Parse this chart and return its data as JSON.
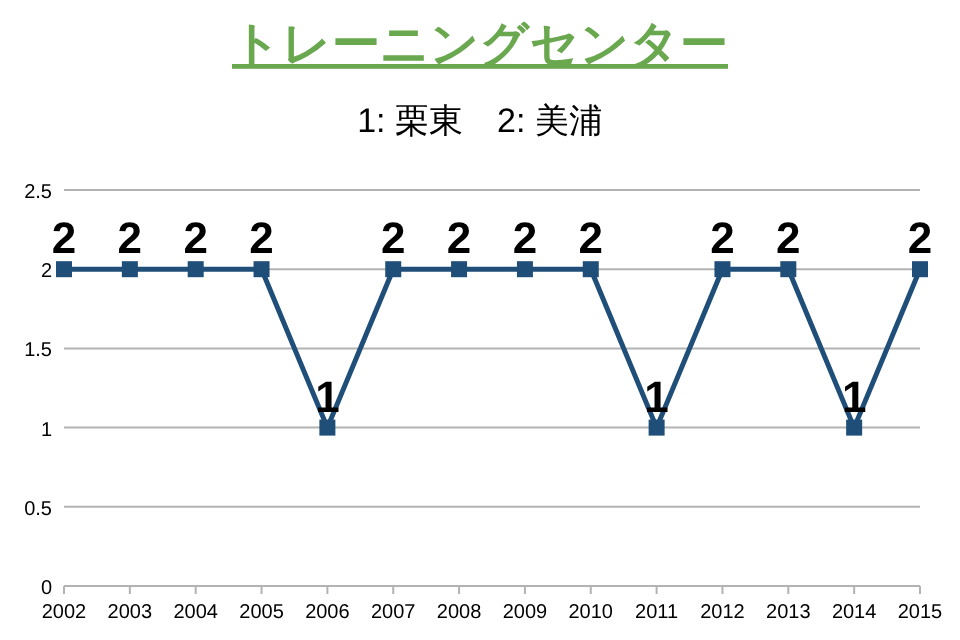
{
  "chart_data": {
    "type": "line",
    "title": "トレーニングセンター",
    "subtitle": "1: 栗東　2: 美浦",
    "x": [
      2002,
      2003,
      2004,
      2005,
      2006,
      2007,
      2008,
      2009,
      2010,
      2011,
      2012,
      2013,
      2014,
      2015
    ],
    "values": [
      2,
      2,
      2,
      2,
      1,
      2,
      2,
      2,
      2,
      1,
      2,
      2,
      1,
      2
    ],
    "color": "#1f4e79",
    "xlim": [
      2002,
      2015
    ],
    "xticks": [
      2002,
      2003,
      2004,
      2005,
      2006,
      2007,
      2008,
      2009,
      2010,
      2011,
      2012,
      2013,
      2014,
      2015
    ],
    "ylim": [
      0,
      2.5
    ],
    "yticks": [
      0,
      0.5,
      1,
      1.5,
      2,
      2.5
    ],
    "grid": "y",
    "marker": "square",
    "data_labels": true
  }
}
